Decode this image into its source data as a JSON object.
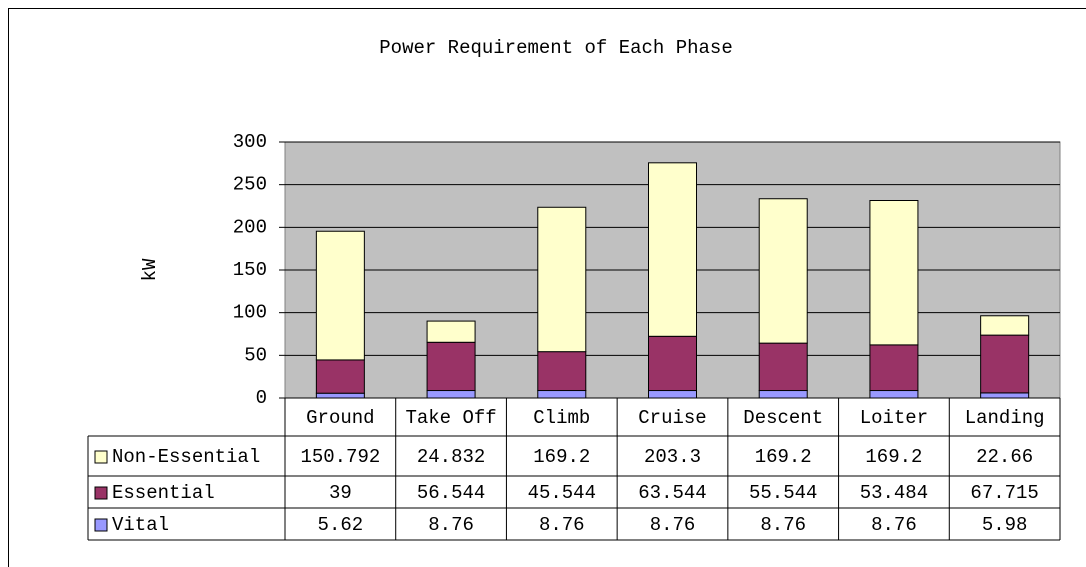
{
  "chart_data": {
    "type": "bar",
    "stacked": true,
    "title": "Power Requirement of Each Phase",
    "y_axis_label": "kW",
    "categories": [
      "Ground",
      "Take Off",
      "Climb",
      "Cruise",
      "Descent",
      "Loiter",
      "Landing"
    ],
    "series": [
      {
        "name": "Vital",
        "color": "#9999ff",
        "values": [
          5.62,
          8.76,
          8.76,
          8.76,
          8.76,
          8.76,
          5.98
        ]
      },
      {
        "name": "Essential",
        "color": "#993366",
        "values": [
          39,
          56.544,
          45.544,
          63.544,
          55.544,
          53.484,
          67.715
        ]
      },
      {
        "name": "Non-Essential",
        "color": "#ffffcc",
        "values": [
          150.792,
          24.832,
          169.2,
          203.3,
          169.2,
          169.2,
          22.66
        ]
      }
    ],
    "ylim": [
      0,
      300
    ],
    "yticks": [
      0,
      50,
      100,
      150,
      200,
      250,
      300
    ],
    "grid": true,
    "plot_background": "#c0c0c0"
  }
}
